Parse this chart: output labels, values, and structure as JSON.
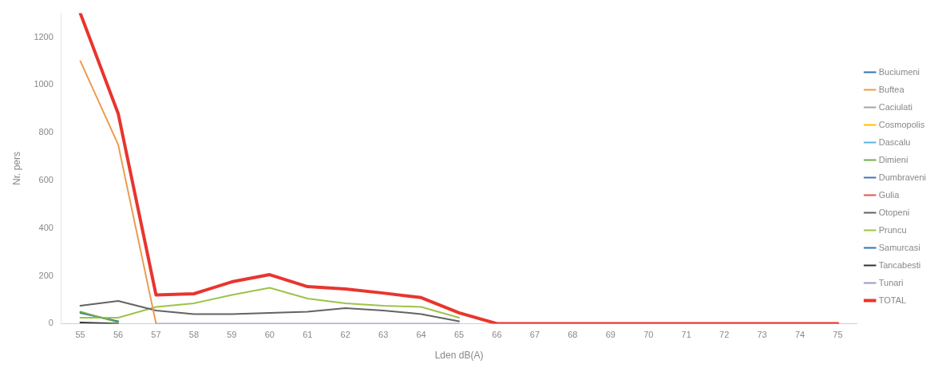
{
  "chart_data": {
    "type": "line",
    "xlabel": "Lden dB(A)",
    "ylabel": "Nr. pers",
    "categories": [
      "55",
      "56",
      "57",
      "58",
      "59",
      "60",
      "61",
      "62",
      "63",
      "64",
      "65",
      "66",
      "67",
      "68",
      "69",
      "70",
      "71",
      "72",
      "73",
      "74",
      "75"
    ],
    "ylim": [
      0,
      1300
    ],
    "yticks": [
      0,
      200,
      400,
      600,
      800,
      1000,
      1200
    ],
    "grid": false,
    "legend": "right",
    "marker": "none",
    "line_style": "solid",
    "series": [
      {
        "name": "Buciumeni",
        "color": "#2e75b6",
        "values": [
          null,
          null,
          null,
          null,
          null,
          null,
          null,
          null,
          null,
          null,
          null,
          null,
          null,
          null,
          null,
          null,
          null,
          null,
          null,
          null,
          null
        ]
      },
      {
        "name": "Buftea",
        "color": "#ed9a4f",
        "values": [
          1100,
          750,
          0,
          null,
          null,
          null,
          null,
          null,
          null,
          null,
          null,
          null,
          null,
          null,
          null,
          null,
          null,
          null,
          null,
          null,
          null
        ]
      },
      {
        "name": "Caciulati",
        "color": "#a5a5a5",
        "values": [
          null,
          null,
          null,
          null,
          null,
          null,
          null,
          null,
          null,
          null,
          null,
          null,
          null,
          null,
          null,
          null,
          null,
          null,
          null,
          null,
          null
        ]
      },
      {
        "name": "Cosmopolis",
        "color": "#ffc000",
        "values": [
          null,
          null,
          null,
          null,
          null,
          null,
          null,
          null,
          null,
          null,
          null,
          null,
          null,
          null,
          null,
          null,
          null,
          null,
          null,
          null,
          null
        ]
      },
      {
        "name": "Dascalu",
        "color": "#5bb5e0",
        "values": [
          null,
          null,
          null,
          null,
          null,
          null,
          null,
          null,
          null,
          null,
          null,
          null,
          null,
          null,
          null,
          null,
          null,
          null,
          null,
          null,
          null
        ]
      },
      {
        "name": "Dimieni",
        "color": "#70ad47",
        "values": [
          50,
          5,
          null,
          null,
          null,
          null,
          null,
          null,
          null,
          null,
          null,
          null,
          null,
          null,
          null,
          null,
          null,
          null,
          null,
          null,
          null
        ]
      },
      {
        "name": "Dumbraveni",
        "color": "#4472c4",
        "values": [
          null,
          null,
          null,
          null,
          null,
          null,
          null,
          null,
          null,
          null,
          null,
          null,
          null,
          null,
          null,
          null,
          null,
          null,
          null,
          null,
          null
        ]
      },
      {
        "name": "Gulia",
        "color": "#e8534a",
        "values": [
          null,
          null,
          null,
          null,
          null,
          null,
          null,
          null,
          null,
          null,
          null,
          null,
          null,
          null,
          null,
          null,
          null,
          null,
          null,
          null,
          null
        ]
      },
      {
        "name": "Otopeni",
        "color": "#636363",
        "values": [
          75,
          95,
          55,
          40,
          40,
          45,
          50,
          65,
          55,
          40,
          10,
          null,
          null,
          null,
          null,
          null,
          null,
          null,
          null,
          null,
          null
        ]
      },
      {
        "name": "Pruncu",
        "color": "#9dc34a",
        "values": [
          25,
          25,
          70,
          85,
          120,
          150,
          105,
          85,
          75,
          70,
          25,
          null,
          null,
          null,
          null,
          null,
          null,
          null,
          null,
          null,
          null
        ]
      },
      {
        "name": "Samurcasi",
        "color": "#2e75b6",
        "values": [
          45,
          10,
          null,
          null,
          null,
          null,
          null,
          null,
          null,
          null,
          null,
          null,
          null,
          null,
          null,
          null,
          null,
          null,
          null,
          null,
          null
        ]
      },
      {
        "name": "Tancabesti",
        "color": "#333333",
        "values": [
          5,
          0,
          null,
          null,
          null,
          null,
          null,
          null,
          null,
          null,
          null,
          null,
          null,
          null,
          null,
          null,
          null,
          null,
          null,
          null,
          null
        ]
      },
      {
        "name": "Tunari",
        "color": "#9999cc",
        "values": [
          null,
          null,
          0,
          0,
          0,
          0,
          0,
          0,
          0,
          0,
          0,
          null,
          null,
          null,
          null,
          null,
          null,
          null,
          null,
          null,
          null
        ]
      },
      {
        "name": "TOTAL",
        "color": "#e8352e",
        "values": [
          1300,
          880,
          120,
          125,
          175,
          205,
          155,
          145,
          128,
          109,
          45,
          0,
          0,
          0,
          0,
          0,
          0,
          0,
          0,
          0,
          0
        ]
      }
    ]
  }
}
